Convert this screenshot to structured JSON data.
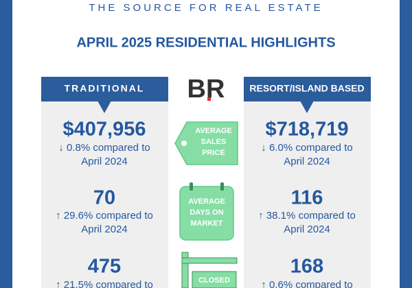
{
  "tagline": "THE SOURCE FOR REAL ESTATE",
  "title": "APRIL 2025 RESIDENTIAL HIGHLIGHTS",
  "logo": "BR",
  "columns": [
    {
      "header": "TRADITIONAL",
      "metrics": [
        {
          "value": "$407,956",
          "change": "↓ 0.8% compared to",
          "compare": "April 2024"
        },
        {
          "value": "70",
          "change": "↑ 29.6% compared to",
          "compare": "April 2024"
        },
        {
          "value": "475",
          "change": "↑ 21.5% compared to"
        }
      ]
    },
    {
      "header": "RESORT/ISLAND BASED",
      "metrics": [
        {
          "value": "$718,719",
          "change": "↓ 6.0% compared to",
          "compare": "April 2024"
        },
        {
          "value": "116",
          "change": "↑ 38.1% compared to",
          "compare": "April 2024"
        },
        {
          "value": "168",
          "change": "↑ 0.6% compared to"
        }
      ]
    }
  ],
  "center_labels": [
    [
      "AVERAGE",
      "SALES",
      "PRICE"
    ],
    [
      "AVERAGE",
      "DAYS ON",
      "MARKET"
    ],
    [
      "CLOSED"
    ]
  ]
}
